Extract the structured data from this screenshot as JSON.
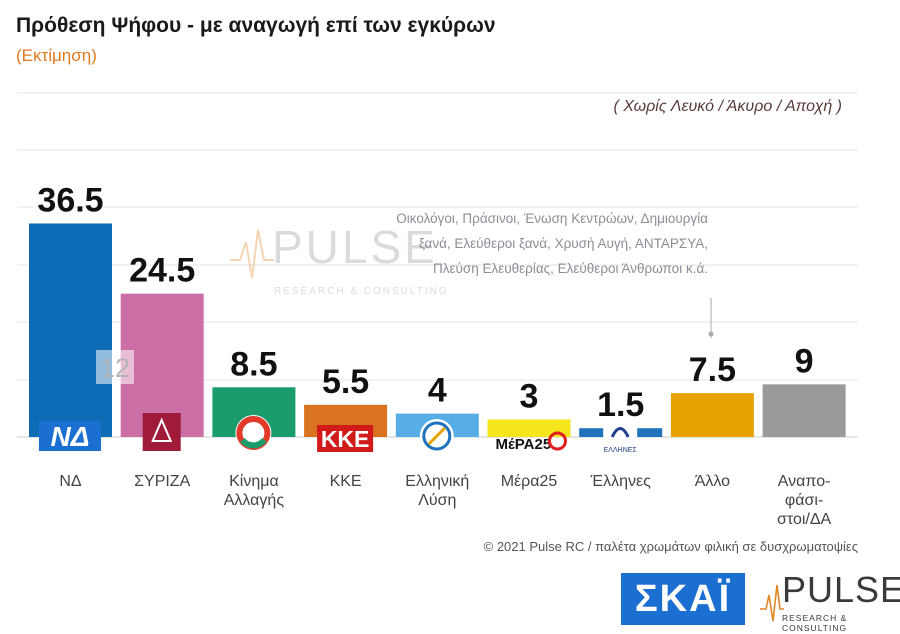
{
  "chart_data": {
    "type": "bar",
    "title": "Πρόθεση Ψήφου - με αναγωγή επί των εγκύρων",
    "subtitle": "(Εκτίμηση)",
    "note": "( Χωρίς Λευκό / Άκυρο / Αποχή )",
    "categories": [
      "ΝΔ",
      "ΣΥΡΙΖΑ",
      "Κίνημα Αλλαγής",
      "ΚΚΕ",
      "Ελληνική Λύση",
      "Μέρα25",
      "Έλληνες",
      "Άλλο",
      "Αναπο-φάσι-στοι/ΔΑ"
    ],
    "category_lines": [
      [
        "ΝΔ"
      ],
      [
        "ΣΥΡΙΖΑ"
      ],
      [
        "Κίνημα",
        "Αλλαγής"
      ],
      [
        "ΚΚΕ"
      ],
      [
        "Ελληνική",
        "Λύση"
      ],
      [
        "Μέρα25"
      ],
      [
        "Έλληνες"
      ],
      [
        "Άλλο"
      ],
      [
        "Αναπο-",
        "φάσι-",
        "στοι/ΔΑ"
      ]
    ],
    "values": [
      36.5,
      24.5,
      8.5,
      5.5,
      4,
      3,
      1.5,
      7.5,
      9
    ],
    "value_labels": [
      "36.5",
      "24.5",
      "8.5",
      "5.5",
      "4",
      "3",
      "1.5",
      "7.5",
      "9"
    ],
    "colors": [
      "#0e6bb5",
      "#cc6fa6",
      "#1a9c6c",
      "#d9731f",
      "#57aee6",
      "#f4e51c",
      "#1f73bd",
      "#e8a200",
      "#9a9a9a"
    ],
    "gap_annotation": {
      "bar_index": 0,
      "text": "12"
    },
    "ylim": [
      0,
      50
    ],
    "grid": true,
    "xlabel": "",
    "ylabel": ""
  },
  "annotation": {
    "other_parties": "Οικολόγοι, Πράσινοι, Ένωση Κεντρώων, Δημιουργία ξανά, Ελεύθεροι ξανά, Χρυσή Αυγή, ΑΝΤΑΡΣΥΑ, Πλεύση Ελευθερίας, Ελεύθεροι Άνθρωποι κ.ά."
  },
  "logos": {
    "nd": "ΝΔ",
    "kke": "ΚΚΕ",
    "mera25": "ΜέΡΑ25",
    "ellines": "ΕΛΛΗΝΕΣ",
    "skai": "ΣΚΑΪ",
    "pulse_word": "PULSE",
    "pulse_tag": "RESEARCH & CONSULTING"
  },
  "footer": "© 2021 Pulse RC   /   παλέτα χρωμάτων φιλική σε δυσχρωματοψίες",
  "icons": [
    "syriza-star-icon",
    "kinal-icon",
    "elliniki-lysi-compass-icon",
    "pulse-wave-icon"
  ]
}
